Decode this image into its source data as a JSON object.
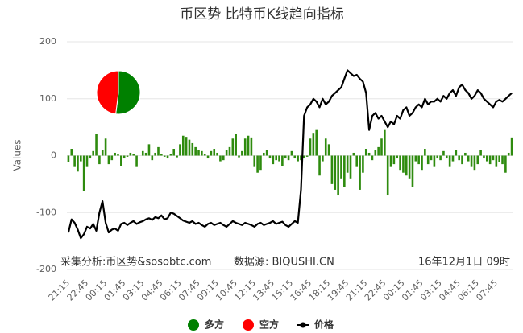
{
  "chart_data": {
    "type": "combo",
    "title": "币区势 比特币K线趋向指标",
    "y_label": "Values",
    "ylim": [
      -200,
      200
    ],
    "yticks": [
      -200,
      -100,
      0,
      100,
      200
    ],
    "grid": true,
    "categories": [
      "21:15",
      null,
      null,
      null,
      null,
      null,
      "22:45",
      null,
      null,
      null,
      null,
      null,
      "00:15",
      null,
      null,
      null,
      null,
      null,
      "01:45",
      null,
      null,
      null,
      null,
      null,
      "03:15",
      null,
      null,
      null,
      null,
      null,
      "04:45",
      null,
      null,
      null,
      null,
      null,
      "06:15",
      null,
      null,
      null,
      null,
      null,
      "07:45",
      null,
      null,
      null,
      null,
      null,
      "09:15",
      null,
      null,
      null,
      null,
      null,
      "10:45",
      null,
      null,
      null,
      null,
      null,
      "12:15",
      null,
      null,
      null,
      null,
      null,
      "13:45",
      null,
      null,
      null,
      null,
      null,
      "15:15",
      null,
      null,
      null,
      null,
      null,
      "16:45",
      null,
      null,
      null,
      null,
      null,
      "18:15",
      null,
      null,
      null,
      null,
      null,
      "19:45",
      null,
      null,
      null,
      null,
      null,
      "21:15",
      null,
      null,
      null,
      null,
      null,
      "22:45",
      null,
      null,
      null,
      null,
      null,
      "00:15",
      null,
      null,
      null,
      null,
      null,
      "01:45",
      null,
      null,
      null,
      null,
      null,
      "03:15",
      null,
      null,
      null,
      null,
      null,
      "04:45",
      null,
      null,
      null,
      null,
      null,
      "06:15",
      null,
      null,
      null,
      null,
      null,
      "07:45",
      null,
      null,
      null,
      null,
      null
    ],
    "series": [
      {
        "type": "bar",
        "color": "#2e8b0e",
        "values": [
          -12,
          12,
          -20,
          -28,
          -10,
          -62,
          -20,
          -5,
          8,
          38,
          -15,
          10,
          30,
          -15,
          -8,
          5,
          2,
          -18,
          -5,
          -2,
          5,
          3,
          -20,
          0,
          8,
          5,
          20,
          -8,
          5,
          15,
          3,
          -2,
          -5,
          3,
          12,
          -3,
          20,
          35,
          33,
          28,
          22,
          15,
          10,
          8,
          3,
          -5,
          8,
          12,
          5,
          -10,
          -8,
          10,
          15,
          30,
          38,
          -3,
          8,
          30,
          35,
          32,
          -20,
          -30,
          -25,
          5,
          10,
          -5,
          -15,
          -8,
          -10,
          -18,
          -5,
          -8,
          8,
          -5,
          -10,
          -8,
          -5,
          -2,
          30,
          40,
          45,
          -35,
          -10,
          30,
          20,
          -50,
          -60,
          -70,
          -40,
          -55,
          -30,
          -40,
          5,
          -20,
          -60,
          -30,
          12,
          5,
          -8,
          10,
          15,
          30,
          45,
          -70,
          -20,
          -15,
          -5,
          -25,
          -30,
          -35,
          -40,
          -55,
          -10,
          -15,
          -25,
          12,
          -15,
          -8,
          -20,
          -5,
          -8,
          8,
          -5,
          -20,
          -10,
          10,
          -8,
          -15,
          5,
          -10,
          -20,
          -25,
          -15,
          10,
          -5,
          -10,
          -15,
          -8,
          -20,
          -12,
          -15,
          -30,
          5,
          32
        ]
      },
      {
        "type": "line",
        "name": "价格",
        "color": "#000000",
        "values": [
          -135,
          -112,
          -118,
          -130,
          -145,
          -138,
          -125,
          -128,
          -120,
          -132,
          -100,
          -80,
          -118,
          -135,
          -130,
          -128,
          -132,
          -120,
          -118,
          -122,
          -118,
          -115,
          -120,
          -117,
          -115,
          -112,
          -110,
          -113,
          -108,
          -110,
          -105,
          -112,
          -110,
          -100,
          -102,
          -106,
          -110,
          -114,
          -116,
          -118,
          -115,
          -120,
          -118,
          -122,
          -125,
          -120,
          -118,
          -122,
          -120,
          -118,
          -122,
          -125,
          -120,
          -115,
          -118,
          -120,
          -122,
          -118,
          -120,
          -122,
          -125,
          -120,
          -118,
          -122,
          -120,
          -118,
          -115,
          -120,
          -118,
          -116,
          -122,
          -125,
          -120,
          -115,
          -118,
          -60,
          70,
          85,
          90,
          100,
          95,
          85,
          100,
          90,
          95,
          105,
          110,
          115,
          120,
          135,
          150,
          145,
          140,
          142,
          135,
          130,
          110,
          45,
          70,
          75,
          65,
          70,
          60,
          50,
          60,
          55,
          70,
          65,
          80,
          85,
          70,
          75,
          85,
          90,
          85,
          100,
          90,
          95,
          95,
          100,
          95,
          105,
          100,
          110,
          115,
          105,
          120,
          125,
          115,
          110,
          100,
          105,
          115,
          110,
          100,
          95,
          90,
          85,
          95,
          98,
          95,
          100,
          105,
          110
        ]
      }
    ],
    "pie": {
      "labels": [
        "多方",
        "空方"
      ],
      "colors": [
        "#008000",
        "#ff0000"
      ],
      "values": [
        52,
        48
      ]
    },
    "credits": [
      "采集分析:币区势&sosobtc.com",
      "数据源: BIQUSHI.CN",
      "16年12月1日 09时"
    ]
  }
}
